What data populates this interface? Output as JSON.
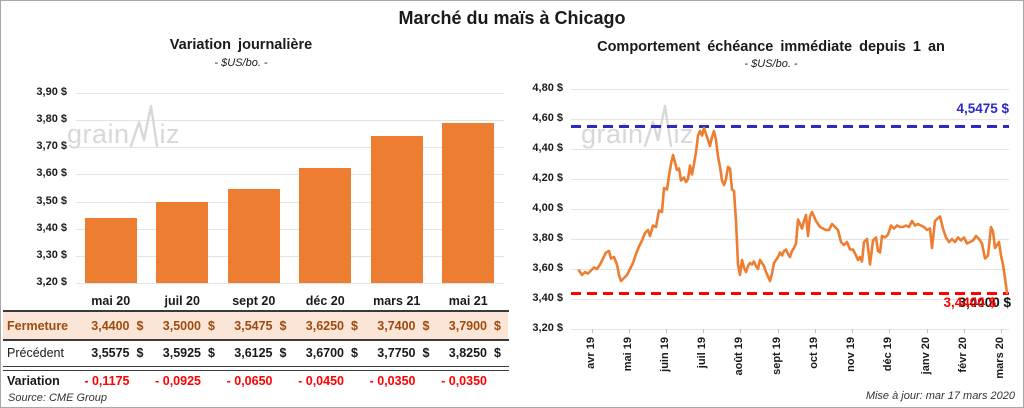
{
  "page": {
    "title": "Marché du maïs à Chicago",
    "source": "Source: CME Group",
    "updated": "Mise à jour: mar 17 mars 2020"
  },
  "watermark": {
    "text": "grainwiz",
    "left": "grain",
    "right": "iz"
  },
  "colors": {
    "accent_orange": "#ED7D31",
    "annotation_blue": "#2B2BC4",
    "annotation_red": "#FF0000",
    "fermeture_bg": "#FBE5D6",
    "fermeture_text": "#9E4B10",
    "grid_gray": "#E4E4E4",
    "watermark_gray": "#D8D8D8"
  },
  "chart_data": [
    {
      "type": "bar",
      "title": "Variation journalière",
      "subtitle": "- $US/bo. -",
      "categories": [
        "mai 20",
        "juil 20",
        "sept 20",
        "déc 20",
        "mars 21",
        "mai 21"
      ],
      "values": [
        3.44,
        3.5,
        3.5475,
        3.625,
        3.74,
        3.79
      ],
      "ylim": [
        3.2,
        3.9
      ],
      "yticks": [
        "3,90 $",
        "3,80 $",
        "3,70 $",
        "3,60 $",
        "3,50 $",
        "3,40 $",
        "3,30 $",
        "3,20 $"
      ],
      "grid": true,
      "legend": "none"
    },
    {
      "type": "line",
      "title": "Comportement échéance immédiate depuis 1 an",
      "subtitle": "- $US/bo. -",
      "x_labels": [
        "avr 19",
        "mai 19",
        "juin 19",
        "juil 19",
        "août 19",
        "sept 19",
        "oct 19",
        "nov 19",
        "déc 19",
        "janv 20",
        "févr 20",
        "mars 20"
      ],
      "ylim": [
        3.2,
        4.8
      ],
      "yticks": [
        "4,80 $",
        "4,60 $",
        "4,40 $",
        "4,20 $",
        "4,00 $",
        "3,80 $",
        "3,60 $",
        "3,40 $",
        "3,20 $"
      ],
      "grid": true,
      "legend": "none",
      "annotations": {
        "max": {
          "value": 4.5475,
          "label": "4,5475 $",
          "style": "dashed"
        },
        "last": {
          "value": 3.44,
          "label": "3,4400 $",
          "label_shadow": "3,4400 $",
          "style": "dashed"
        }
      },
      "points": [
        [
          578,
          3.59
        ],
        [
          581,
          3.56
        ],
        [
          584,
          3.58
        ],
        [
          587,
          3.57
        ],
        [
          590,
          3.59
        ],
        [
          593,
          3.61
        ],
        [
          596,
          3.6
        ],
        [
          599,
          3.63
        ],
        [
          602,
          3.67
        ],
        [
          605,
          3.71
        ],
        [
          608,
          3.72
        ],
        [
          610,
          3.67
        ],
        [
          613,
          3.68
        ],
        [
          616,
          3.63
        ],
        [
          618,
          3.56
        ],
        [
          620,
          3.52
        ],
        [
          623,
          3.54
        ],
        [
          626,
          3.56
        ],
        [
          629,
          3.6
        ],
        [
          632,
          3.64
        ],
        [
          635,
          3.7
        ],
        [
          638,
          3.75
        ],
        [
          641,
          3.79
        ],
        [
          644,
          3.84
        ],
        [
          647,
          3.86
        ],
        [
          649,
          3.82
        ],
        [
          652,
          3.89
        ],
        [
          655,
          3.88
        ],
        [
          658,
          3.99
        ],
        [
          661,
          3.98
        ],
        [
          663,
          4.14
        ],
        [
          666,
          4.13
        ],
        [
          668,
          4.22
        ],
        [
          670,
          4.3
        ],
        [
          672,
          4.36
        ],
        [
          674,
          4.31
        ],
        [
          676,
          4.26
        ],
        [
          678,
          4.27
        ],
        [
          680,
          4.19
        ],
        [
          683,
          4.21
        ],
        [
          685,
          4.18
        ],
        [
          687,
          4.2
        ],
        [
          689,
          4.29
        ],
        [
          691,
          4.23
        ],
        [
          693,
          4.3
        ],
        [
          695,
          4.38
        ],
        [
          697,
          4.49
        ],
        [
          699,
          4.52
        ],
        [
          701,
          4.49
        ],
        [
          703,
          4.54
        ],
        [
          705,
          4.5
        ],
        [
          707,
          4.46
        ],
        [
          709,
          4.42
        ],
        [
          711,
          4.48
        ],
        [
          713,
          4.52
        ],
        [
          715,
          4.46
        ],
        [
          717,
          4.35
        ],
        [
          719,
          4.28
        ],
        [
          721,
          4.19
        ],
        [
          723,
          4.16
        ],
        [
          725,
          4.2
        ],
        [
          727,
          4.28
        ],
        [
          729,
          4.27
        ],
        [
          731,
          4.13
        ],
        [
          733,
          4.12
        ],
        [
          735,
          3.92
        ],
        [
          737,
          3.63
        ],
        [
          739,
          3.56
        ],
        [
          741,
          3.66
        ],
        [
          743,
          3.61
        ],
        [
          745,
          3.58
        ],
        [
          747,
          3.62
        ],
        [
          749,
          3.64
        ],
        [
          751,
          3.63
        ],
        [
          753,
          3.65
        ],
        [
          755,
          3.62
        ],
        [
          757,
          3.6
        ],
        [
          759,
          3.66
        ],
        [
          761,
          3.64
        ],
        [
          763,
          3.62
        ],
        [
          765,
          3.58
        ],
        [
          767,
          3.55
        ],
        [
          769,
          3.52
        ],
        [
          771,
          3.57
        ],
        [
          773,
          3.64
        ],
        [
          775,
          3.66
        ],
        [
          777,
          3.68
        ],
        [
          779,
          3.71
        ],
        [
          781,
          3.69
        ],
        [
          783,
          3.72
        ],
        [
          785,
          3.73
        ],
        [
          787,
          3.7
        ],
        [
          789,
          3.68
        ],
        [
          791,
          3.72
        ],
        [
          793,
          3.74
        ],
        [
          795,
          3.77
        ],
        [
          797,
          3.93
        ],
        [
          799,
          3.9
        ],
        [
          801,
          3.87
        ],
        [
          803,
          3.92
        ],
        [
          805,
          3.96
        ],
        [
          807,
          3.82
        ],
        [
          809,
          3.95
        ],
        [
          811,
          3.98
        ],
        [
          813,
          3.95
        ],
        [
          815,
          3.92
        ],
        [
          817,
          3.9
        ],
        [
          819,
          3.88
        ],
        [
          822,
          3.87
        ],
        [
          825,
          3.86
        ],
        [
          828,
          3.86
        ],
        [
          831,
          3.9
        ],
        [
          834,
          3.88
        ],
        [
          837,
          3.86
        ],
        [
          840,
          3.78
        ],
        [
          843,
          3.76
        ],
        [
          846,
          3.78
        ],
        [
          849,
          3.73
        ],
        [
          852,
          3.73
        ],
        [
          855,
          3.69
        ],
        [
          857,
          3.66
        ],
        [
          859,
          3.68
        ],
        [
          861,
          3.65
        ],
        [
          863,
          3.78
        ],
        [
          866,
          3.8
        ],
        [
          869,
          3.63
        ],
        [
          872,
          3.79
        ],
        [
          875,
          3.81
        ],
        [
          877,
          3.72
        ],
        [
          879,
          3.71
        ],
        [
          881,
          3.82
        ],
        [
          884,
          3.81
        ],
        [
          887,
          3.83
        ],
        [
          890,
          3.89
        ],
        [
          893,
          3.87
        ],
        [
          896,
          3.89
        ],
        [
          899,
          3.88
        ],
        [
          902,
          3.88
        ],
        [
          905,
          3.89
        ],
        [
          908,
          3.88
        ],
        [
          911,
          3.92
        ],
        [
          914,
          3.89
        ],
        [
          917,
          3.9
        ],
        [
          920,
          3.89
        ],
        [
          923,
          3.88
        ],
        [
          926,
          3.86
        ],
        [
          929,
          3.87
        ],
        [
          931,
          3.74
        ],
        [
          934,
          3.92
        ],
        [
          937,
          3.94
        ],
        [
          939,
          3.95
        ],
        [
          942,
          3.87
        ],
        [
          945,
          3.81
        ],
        [
          948,
          3.78
        ],
        [
          951,
          3.8
        ],
        [
          954,
          3.78
        ],
        [
          957,
          3.81
        ],
        [
          960,
          3.79
        ],
        [
          963,
          3.81
        ],
        [
          966,
          3.77
        ],
        [
          969,
          3.78
        ],
        [
          972,
          3.79
        ],
        [
          975,
          3.82
        ],
        [
          978,
          3.8
        ],
        [
          981,
          3.77
        ],
        [
          984,
          3.67
        ],
        [
          987,
          3.69
        ],
        [
          990,
          3.88
        ],
        [
          992,
          3.85
        ],
        [
          994,
          3.74
        ],
        [
          996,
          3.76
        ],
        [
          998,
          3.78
        ],
        [
          1000,
          3.69
        ],
        [
          1002,
          3.63
        ],
        [
          1004,
          3.54
        ],
        [
          1006,
          3.44
        ]
      ]
    },
    {
      "type": "table",
      "columns": [
        "mai 20",
        "juil 20",
        "sept 20",
        "déc 20",
        "mars 21",
        "mai 21"
      ],
      "rows": [
        {
          "label": "Fermeture",
          "currency": "$",
          "values": [
            "3,4400",
            "3,5000",
            "3,5475",
            "3,6250",
            "3,7400",
            "3,7900"
          ]
        },
        {
          "label": "Précédent",
          "currency": "$",
          "values": [
            "3,5575",
            "3,5925",
            "3,6125",
            "3,6700",
            "3,7750",
            "3,8250"
          ]
        },
        {
          "label": "Variation",
          "currency": "",
          "values": [
            "- 0,1175",
            "- 0,0925",
            "- 0,0650",
            "- 0,0450",
            "- 0,0350",
            "- 0,0350"
          ]
        }
      ]
    }
  ]
}
